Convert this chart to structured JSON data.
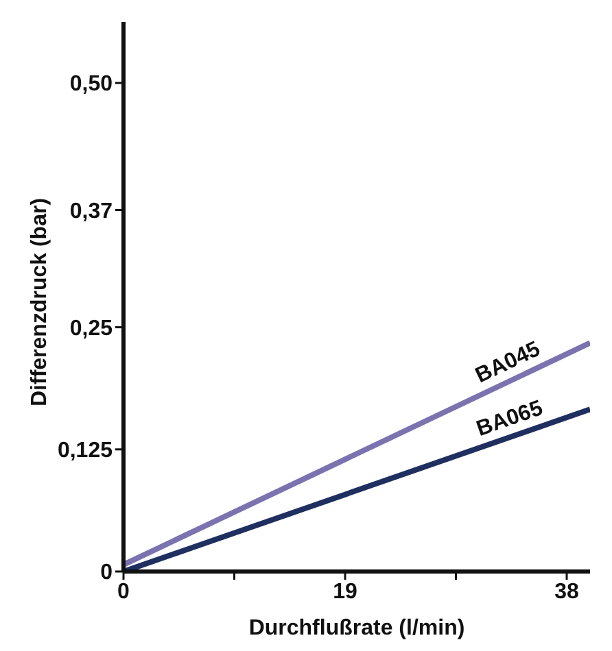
{
  "chart_data": {
    "type": "line",
    "xlabel": "Durchflußrate (l/min)",
    "ylabel": "Differenzdruck (bar)",
    "x": [
      0,
      40
    ],
    "series": [
      {
        "name": "BA045",
        "color": "#7b72b0",
        "values": [
          0.007,
          0.234
        ]
      },
      {
        "name": "BA065",
        "color": "#1f2f5f",
        "values": [
          0,
          0.166
        ]
      }
    ],
    "xlim": [
      0,
      40
    ],
    "xticks": [
      0,
      {
        "value": 9.5,
        "label": null
      },
      19,
      {
        "value": 28.5,
        "label": null
      },
      38
    ],
    "ylim": [
      0,
      0.5625
    ],
    "yticks": [
      0,
      {
        "value": 0.125,
        "label": "0,125"
      },
      {
        "value": 0.25,
        "label": "0,25"
      },
      {
        "value": 0.37,
        "label": "0,37"
      },
      {
        "value": 0.5,
        "label": "0,50"
      }
    ],
    "grid": false,
    "legend": false,
    "marker": "none",
    "line_style": "solid"
  }
}
